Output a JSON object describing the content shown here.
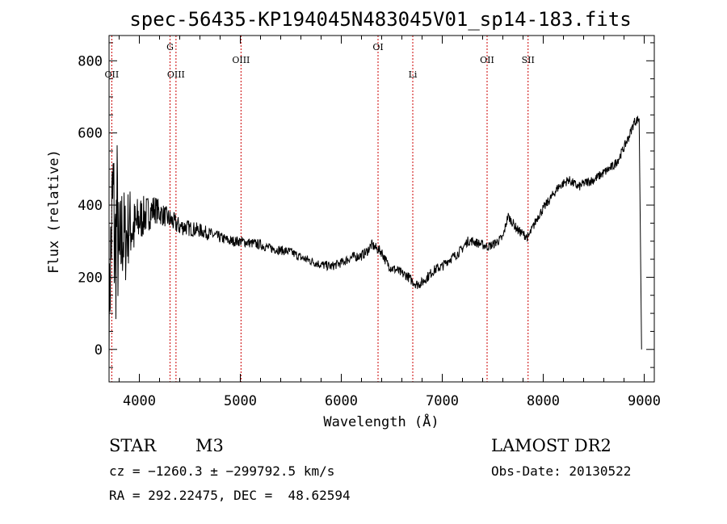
{
  "chart_data": {
    "type": "line",
    "title": "spec-56435-KP194045N483045V01_sp14-183.fits",
    "xlabel": "Wavelength (Å)",
    "ylabel": "Flux (relative)",
    "xlim": [
      3700,
      9100
    ],
    "ylim": [
      -90,
      870
    ],
    "xticks": [
      4000,
      5000,
      6000,
      7000,
      8000,
      9000
    ],
    "yticks": [
      0,
      200,
      400,
      600,
      800
    ],
    "grid": false,
    "series": [
      {
        "color": "#000000",
        "x": [
          3700,
          3720,
          3740,
          3760,
          3780,
          3800,
          3830,
          3860,
          3900,
          3950,
          4000,
          4050,
          4100,
          4150,
          4200,
          4250,
          4300,
          4350,
          4400,
          4450,
          4500,
          4600,
          4700,
          4800,
          4900,
          5000,
          5100,
          5200,
          5300,
          5400,
          5500,
          5600,
          5700,
          5800,
          5900,
          6000,
          6100,
          6200,
          6250,
          6300,
          6350,
          6400,
          6450,
          6500,
          6550,
          6600,
          6650,
          6700,
          6750,
          6800,
          6850,
          6900,
          6950,
          7000,
          7050,
          7100,
          7150,
          7200,
          7250,
          7300,
          7350,
          7400,
          7450,
          7500,
          7550,
          7600,
          7650,
          7700,
          7750,
          7800,
          7850,
          7900,
          7950,
          8000,
          8050,
          8100,
          8150,
          8200,
          8250,
          8300,
          8350,
          8400,
          8450,
          8500,
          8550,
          8600,
          8650,
          8700,
          8750,
          8800,
          8850,
          8900,
          8950
        ],
        "y": [
          80,
          300,
          420,
          250,
          380,
          200,
          330,
          300,
          350,
          330,
          360,
          370,
          380,
          390,
          380,
          370,
          360,
          350,
          340,
          340,
          335,
          330,
          320,
          310,
          300,
          300,
          295,
          290,
          280,
          275,
          270,
          255,
          245,
          235,
          230,
          240,
          255,
          260,
          270,
          290,
          280,
          270,
          240,
          225,
          220,
          210,
          205,
          190,
          180,
          185,
          200,
          215,
          225,
          230,
          245,
          255,
          265,
          280,
          300,
          300,
          295,
          290,
          285,
          290,
          300,
          310,
          370,
          350,
          330,
          320,
          310,
          340,
          370,
          390,
          410,
          430,
          450,
          460,
          470,
          460,
          450,
          460,
          465,
          470,
          480,
          490,
          500,
          510,
          530,
          560,
          590,
          630,
          640
        ],
        "noise": [
          120,
          200,
          260,
          260,
          220,
          200,
          160,
          130,
          110,
          90,
          70,
          55,
          50,
          40,
          35,
          30,
          30,
          28,
          26,
          24,
          22,
          20,
          18,
          16,
          15,
          14,
          14,
          14,
          13,
          13,
          13,
          13,
          13,
          13,
          13,
          13,
          14,
          14,
          14,
          14,
          14,
          14,
          14,
          14,
          14,
          14,
          14,
          14,
          14,
          14,
          14,
          14,
          14,
          14,
          13,
          13,
          13,
          13,
          13,
          13,
          13,
          13,
          13,
          13,
          13,
          13,
          13,
          13,
          13,
          13,
          13,
          13,
          13,
          13,
          13,
          13,
          13,
          13,
          13,
          13,
          13,
          13,
          13,
          13,
          13,
          13,
          13,
          13,
          13,
          13,
          13,
          13,
          13
        ]
      }
    ],
    "lines": [
      {
        "label": "OII",
        "x": 3727,
        "row": "low"
      },
      {
        "label": "G",
        "x": 4304,
        "row": "high"
      },
      {
        "label": "OIII",
        "x": 4363,
        "row": "low"
      },
      {
        "label": "OIII",
        "x": 5007,
        "row": "mid"
      },
      {
        "label": "OI",
        "x": 6364,
        "row": "high"
      },
      {
        "label": "Li",
        "x": 6708,
        "row": "low"
      },
      {
        "label": "OII",
        "x": 7444,
        "row": "mid"
      },
      {
        "label": "SII",
        "x": 7850,
        "row": "mid"
      }
    ],
    "line_color": "#cc0000"
  },
  "info": {
    "class": "STAR",
    "subclass": "M3",
    "survey": "LAMOST DR2",
    "cz": "cz = −1260.3 ± −299792.5 km/s",
    "obs_date": "Obs-Date: 20130522",
    "radec": "RA = 292.22475, DEC =  48.62594"
  }
}
